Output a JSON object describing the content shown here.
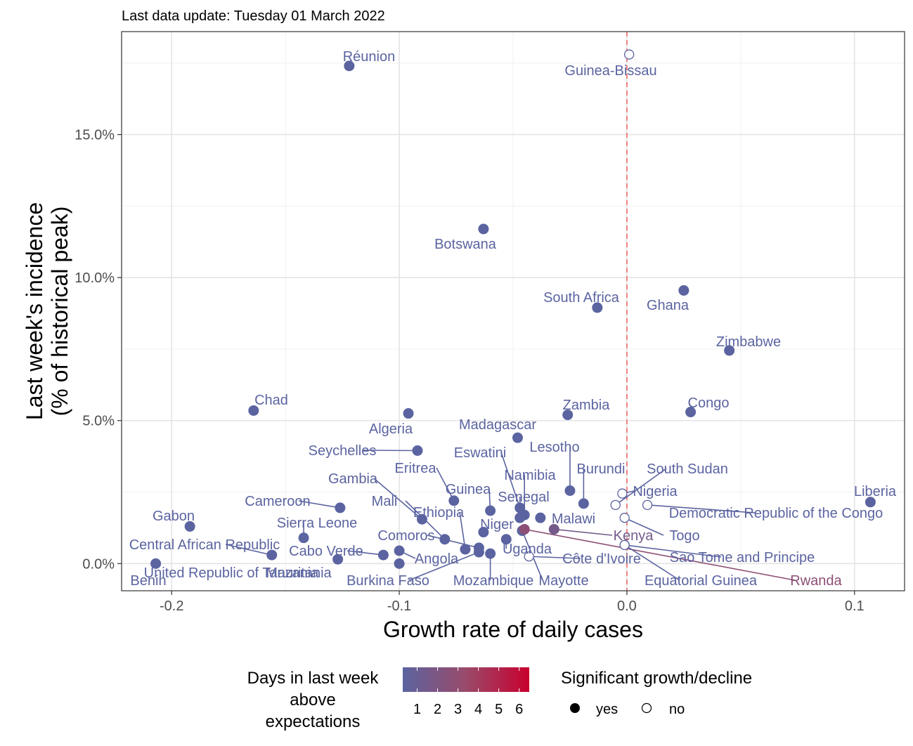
{
  "subtitle": "Last data update: Tuesday 01 March 2022",
  "chart_data": {
    "type": "scatter",
    "xlabel": "Growth rate of daily cases",
    "ylabel_lines": [
      "Last week's incidence",
      "(% of historical peak)"
    ],
    "xlim": [
      -0.222,
      0.122
    ],
    "ylim": [
      -0.95,
      18.6
    ],
    "x_ticks": [
      -0.2,
      -0.1,
      0.0,
      0.1
    ],
    "x_tick_labels": [
      "-0.2",
      "-0.1",
      "0.0",
      "0.1"
    ],
    "y_ticks": [
      0,
      5,
      10,
      15
    ],
    "y_tick_labels": [
      "0.0%",
      "5.0%",
      "10.0%",
      "15.0%"
    ],
    "grid": true,
    "reference_line_x": 0,
    "colors": {
      "low": "#5b64a0",
      "mid": "#9a4a6a",
      "high": "#c8002e",
      "refline": "#f08080"
    },
    "points": [
      {
        "name": "Réunion",
        "x": -0.122,
        "y": 17.4,
        "days": 1,
        "sig": true
      },
      {
        "name": "Guinea-Bissau",
        "x": 0.001,
        "y": 17.8,
        "days": 1,
        "sig": false
      },
      {
        "name": "Botswana",
        "x": -0.063,
        "y": 11.7,
        "days": 1,
        "sig": true
      },
      {
        "name": "South Africa",
        "x": -0.013,
        "y": 8.95,
        "days": 1,
        "sig": true
      },
      {
        "name": "Ghana",
        "x": 0.025,
        "y": 9.55,
        "days": 1,
        "sig": true
      },
      {
        "name": "Zimbabwe",
        "x": 0.045,
        "y": 7.45,
        "days": 1,
        "sig": true
      },
      {
        "name": "Chad",
        "x": -0.164,
        "y": 5.35,
        "days": 1,
        "sig": true
      },
      {
        "name": "Algeria",
        "x": -0.096,
        "y": 5.25,
        "days": 1,
        "sig": true
      },
      {
        "name": "Zambia",
        "x": -0.026,
        "y": 5.2,
        "days": 1,
        "sig": true
      },
      {
        "name": "Congo",
        "x": 0.028,
        "y": 5.3,
        "days": 1,
        "sig": true
      },
      {
        "name": "Madagascar",
        "x": -0.048,
        "y": 4.4,
        "days": 1,
        "sig": true
      },
      {
        "name": "Seychelles",
        "x": -0.092,
        "y": 3.95,
        "days": 1,
        "sig": true
      },
      {
        "name": "Lesotho",
        "x": -0.025,
        "y": 2.55,
        "days": 1,
        "sig": true
      },
      {
        "name": "Burundi",
        "x": -0.019,
        "y": 2.1,
        "days": 1,
        "sig": true
      },
      {
        "name": "South Sudan",
        "x": -0.005,
        "y": 2.05,
        "days": 1,
        "sig": false
      },
      {
        "name": "Nigeria",
        "x": -0.002,
        "y": 2.45,
        "days": 1,
        "sig": false
      },
      {
        "name": "Democratic Republic of the Congo",
        "x": 0.009,
        "y": 2.05,
        "days": 1,
        "sig": false
      },
      {
        "name": "Liberia",
        "x": 0.107,
        "y": 2.15,
        "days": 1,
        "sig": true
      },
      {
        "name": "Gabon",
        "x": -0.192,
        "y": 1.3,
        "days": 1,
        "sig": true
      },
      {
        "name": "Cameroon",
        "x": -0.126,
        "y": 1.95,
        "days": 1,
        "sig": true
      },
      {
        "name": "Sierra Leone",
        "x": -0.142,
        "y": 0.9,
        "days": 1,
        "sig": true
      },
      {
        "name": "Central African Republic",
        "x": -0.156,
        "y": 0.3,
        "days": 1,
        "sig": true
      },
      {
        "name": "United Republic of Tanzania",
        "x": -0.127,
        "y": 0.15,
        "days": 1,
        "sig": true
      },
      {
        "name": "Benin",
        "x": -0.207,
        "y": 0.0,
        "days": 1,
        "sig": true
      },
      {
        "name": "Mauritania",
        "x": -0.1,
        "y": 0.0,
        "days": 1,
        "sig": true
      },
      {
        "name": "Cabo Verde",
        "x": -0.107,
        "y": 0.3,
        "days": 1,
        "sig": true
      },
      {
        "name": "Angola",
        "x": -0.1,
        "y": 0.45,
        "days": 1,
        "sig": true
      },
      {
        "name": "Gambia",
        "x": -0.09,
        "y": 1.55,
        "days": 1,
        "sig": true
      },
      {
        "name": "Mali",
        "x": -0.08,
        "y": 0.85,
        "days": 1,
        "sig": true
      },
      {
        "name": "Eritrea",
        "x": -0.076,
        "y": 2.2,
        "days": 1,
        "sig": true
      },
      {
        "name": "Ethiopia",
        "x": -0.071,
        "y": 0.5,
        "days": 1,
        "sig": true
      },
      {
        "name": "Comoros",
        "x": -0.065,
        "y": 0.55,
        "days": 1,
        "sig": true
      },
      {
        "name": "Burkina Faso",
        "x": -0.065,
        "y": 0.4,
        "days": 1,
        "sig": true
      },
      {
        "name": "Guinea",
        "x": -0.06,
        "y": 1.85,
        "days": 1,
        "sig": true
      },
      {
        "name": "Niger",
        "x": -0.063,
        "y": 1.1,
        "days": 1,
        "sig": true
      },
      {
        "name": "Mozambique",
        "x": -0.06,
        "y": 0.35,
        "days": 1,
        "sig": true
      },
      {
        "name": "Uganda",
        "x": -0.053,
        "y": 0.85,
        "days": 1,
        "sig": true
      },
      {
        "name": "Eswatini",
        "x": -0.047,
        "y": 1.95,
        "days": 1,
        "sig": true
      },
      {
        "name": "Senegal",
        "x": -0.047,
        "y": 1.6,
        "days": 1,
        "sig": true
      },
      {
        "name": "Namibia",
        "x": -0.045,
        "y": 1.7,
        "days": 1,
        "sig": true
      },
      {
        "name": "Mayotte",
        "x": -0.046,
        "y": 1.15,
        "days": 1,
        "sig": true
      },
      {
        "name": "Malawi",
        "x": -0.038,
        "y": 1.6,
        "days": 1,
        "sig": true
      },
      {
        "name": "Côte d'Ivoire",
        "x": -0.043,
        "y": 0.25,
        "days": 1,
        "sig": false
      },
      {
        "name": "Kenya",
        "x": -0.032,
        "y": 1.2,
        "days": 2,
        "sig": true
      },
      {
        "name": "Rwanda",
        "x": -0.045,
        "y": 1.2,
        "days": 3,
        "sig": true
      },
      {
        "name": "Togo",
        "x": -0.001,
        "y": 1.6,
        "days": 1,
        "sig": false
      },
      {
        "name": "Sao Tome and Principe",
        "x": -0.001,
        "y": 0.65,
        "days": 1,
        "sig": false
      },
      {
        "name": "Equatorial Guinea",
        "x": -0.001,
        "y": 0.65,
        "days": 1,
        "sig": false
      }
    ],
    "legend": {
      "color_title_lines": [
        "Days in last week",
        "above",
        "expectations"
      ],
      "color_ticks": [
        "1",
        "2",
        "3",
        "4",
        "5",
        "6"
      ],
      "shape_title": "Significant growth/decline",
      "shape_items": [
        "yes",
        "no"
      ]
    }
  }
}
